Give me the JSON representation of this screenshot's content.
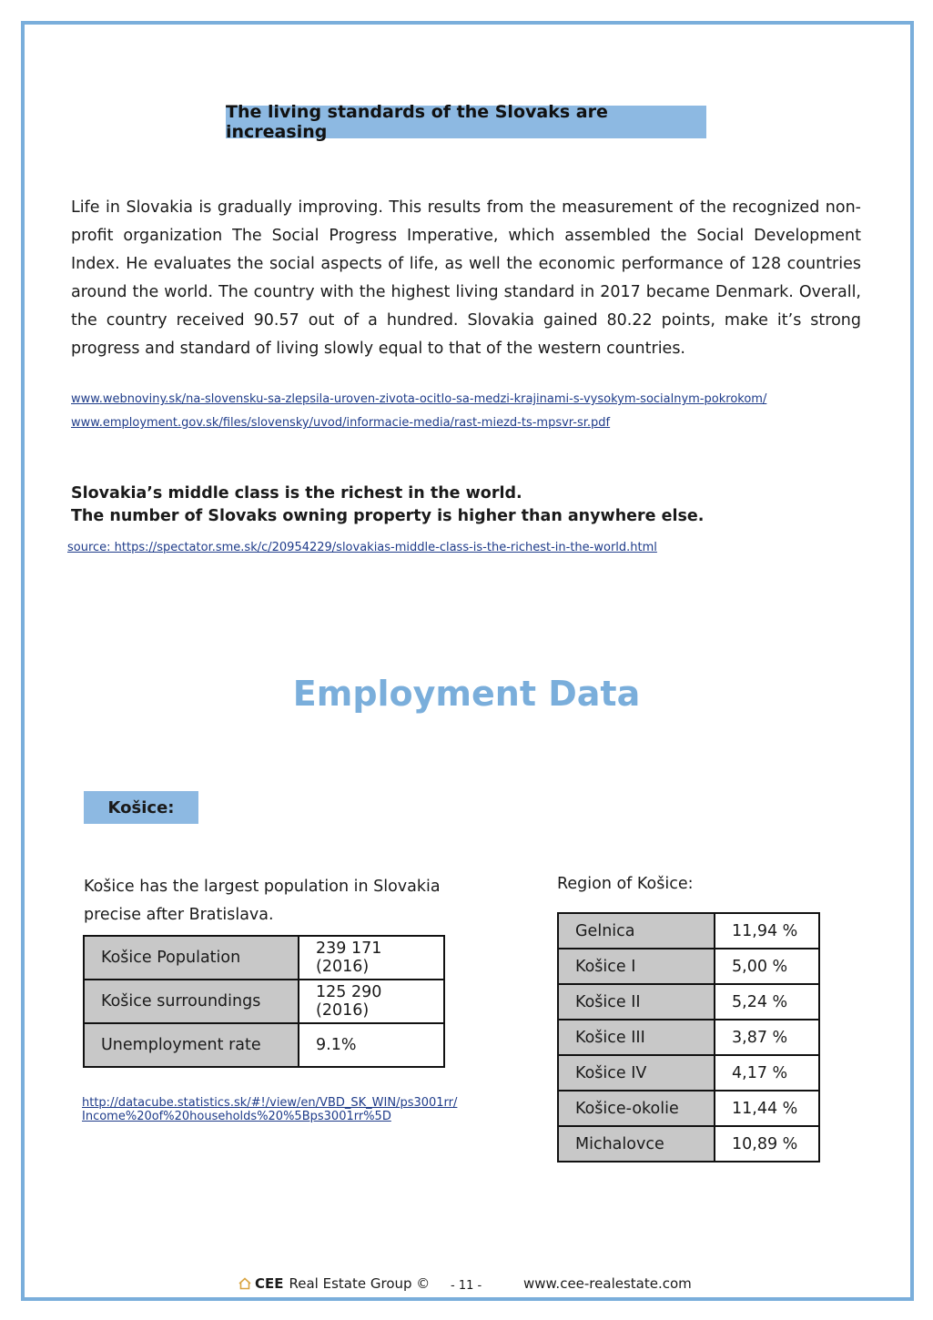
{
  "heading": "The living standards of the Slovaks are increasing",
  "intro": "Life in Slovakia is gradually improving. This results from the measurement of the recognized non-profit organization The Social Progress Imperative, which assembled the Social Development Index. He evaluates the social aspects of life, as well the economic performance of 128 countries around the world. The country with the highest living standard in 2017 became Denmark. Overall, the country received 90.57 out of a hundred. Slovakia gained 80.22 points, make it’s strong progress and standard of living slowly equal to that of the western countries.",
  "links": [
    "www.webnoviny.sk/na-slovensku-sa-zlepsila-uroven-zivota-ocitlo-sa-medzi-krajinami-s-vysokym-socialnym-pokrokom/",
    "www.employment.gov.sk/files/slovensky/uvod/informacie-media/rast-miezd-ts-mpsvr-sr.pdf"
  ],
  "middle_class": {
    "line1": "Slovakia’s middle class is the richest in the world.",
    "line2": "The number of Slovaks owning property is higher than anywhere else.",
    "source": "source: https://spectator.sme.sk/c/20954229/slovakias-middle-class-is-the-richest-in-the-world.html"
  },
  "employment_title": "Employment Data",
  "city": "Košice:",
  "kosice_desc": "Košice has the largest population in Slovakia precise after Bratislava.",
  "stats": [
    {
      "label": "Košice Population",
      "value": "239 171 (2016)"
    },
    {
      "label": "Košice surroundings",
      "value": "125 290 (2016)"
    },
    {
      "label": "Unemployment rate",
      "value": "9.1%"
    }
  ],
  "datacube_link": {
    "line1": "http://datacube.statistics.sk/#!/view/en/VBD_SK_WIN/ps3001rr/",
    "line2": "Income%20of%20households%20%5Bps3001rr%5D"
  },
  "region_title": "Region of Košice:",
  "regions": [
    {
      "label": "Gelnica",
      "value": "11,94 %"
    },
    {
      "label": "Košice I",
      "value": "5,00 %"
    },
    {
      "label": "Košice II",
      "value": "5,24 %"
    },
    {
      "label": "Košice III",
      "value": "3,87 %"
    },
    {
      "label": "Košice IV",
      "value": "4,17 %"
    },
    {
      "label": "Košice-okolie",
      "value": "11,44 %"
    },
    {
      "label": "Michalovce",
      "value": "10,89 %"
    }
  ],
  "footer": {
    "brand_bold": "CEE",
    "brand_rest": "Real Estate Group ©",
    "page": "- 11 -",
    "website": "www.cee-realestate.com"
  },
  "colors": {
    "accent": "#7aaedb",
    "box": "#8db9e2",
    "cell": "#c8c8c8",
    "link": "#1f3c8a"
  }
}
